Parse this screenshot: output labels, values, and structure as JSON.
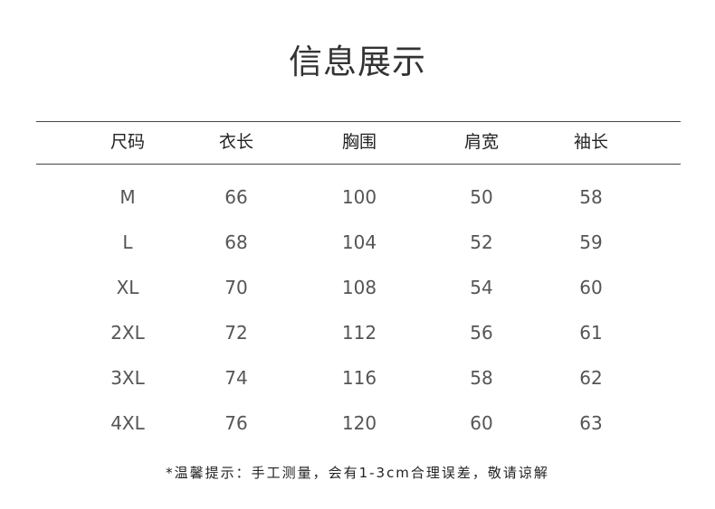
{
  "title": "信息展示",
  "headers": [
    "尺码",
    "衣长",
    "胸围",
    "肩宽",
    "袖长"
  ],
  "rows": [
    [
      "M",
      "66",
      "100",
      "50",
      "58"
    ],
    [
      "L",
      "68",
      "104",
      "52",
      "59"
    ],
    [
      "XL",
      "70",
      "108",
      "54",
      "60"
    ],
    [
      "2XL",
      "72",
      "112",
      "56",
      "61"
    ],
    [
      "3XL",
      "74",
      "116",
      "58",
      "62"
    ],
    [
      "4XL",
      "76",
      "120",
      "60",
      "63"
    ]
  ],
  "note": "*温馨提示：手工测量，会有1-3cm合理误差，敬请谅解"
}
